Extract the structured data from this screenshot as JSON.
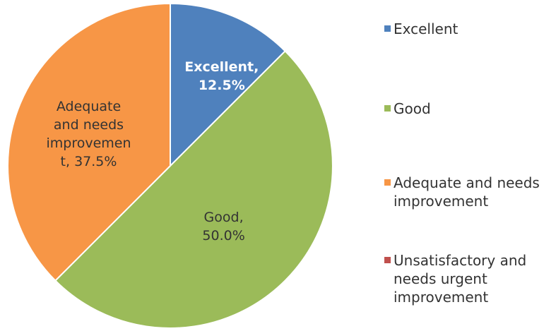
{
  "chart_data": {
    "type": "pie",
    "categories": [
      "Excellent",
      "Good",
      "Adequate and needs improvement",
      "Unsatisfactory and needs urgent improvement"
    ],
    "values": [
      12.5,
      50.0,
      37.5,
      0
    ],
    "value_labels": [
      "Excellent, 12.5%",
      "Good, 50.0%",
      "Adequate and needs improvement, 37.5%",
      null
    ],
    "colors": [
      "#4f81bd",
      "#9bbb59",
      "#f79646",
      "#c0504d"
    ],
    "legend": "right"
  }
}
